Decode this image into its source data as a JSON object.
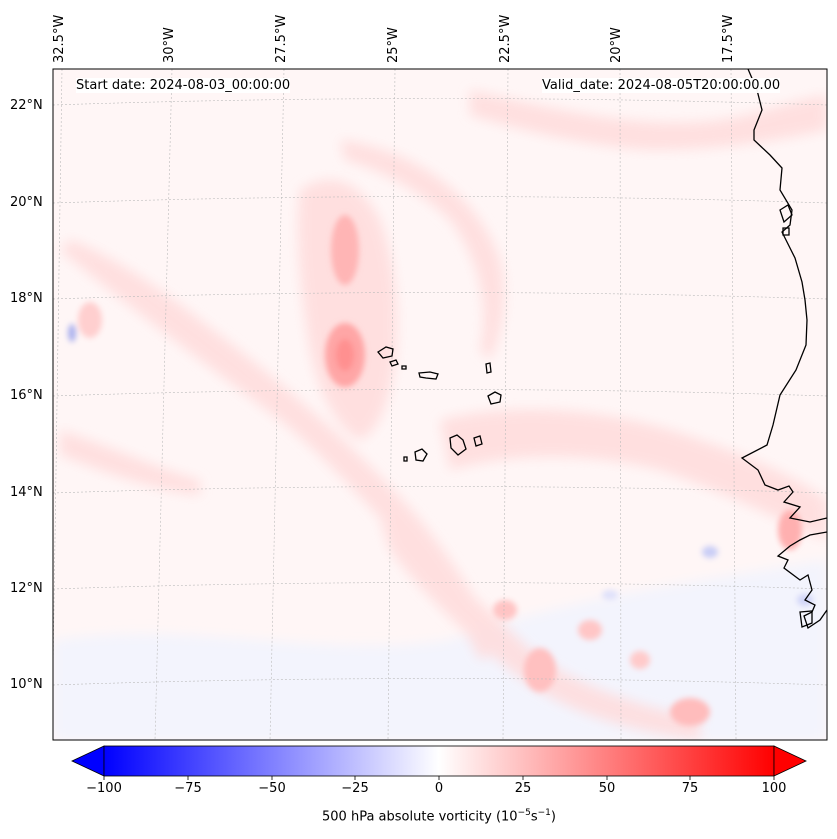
{
  "map": {
    "top_longitude_labels": [
      "32.5°W",
      "30°W",
      "27.5°W",
      "25°W",
      "22.5°W",
      "20°W",
      "17.5°W"
    ],
    "left_latitude_labels": [
      "22°N",
      "20°N",
      "18°N",
      "16°N",
      "14°N",
      "12°N",
      "10°N"
    ],
    "start_date": "Start date: 2024-08-03_00:00:00",
    "valid_date": "Valid_date: 2024-08-05T20:00:00.00",
    "field_colors": {
      "positive": "#ff0000",
      "negative": "#0000ff",
      "neutral": "#ffffff",
      "coastline": "#000000"
    }
  },
  "colorbar": {
    "label": "500 hPa absolute vorticity (10",
    "label_exp1": "−5",
    "label_mid": "s",
    "label_exp2": "−1",
    "label_end": ")",
    "tick_labels": [
      "−100",
      "−75",
      "−50",
      "−25",
      "0",
      "25",
      "50",
      "75",
      "100"
    ],
    "min": -100,
    "max": 100
  }
}
